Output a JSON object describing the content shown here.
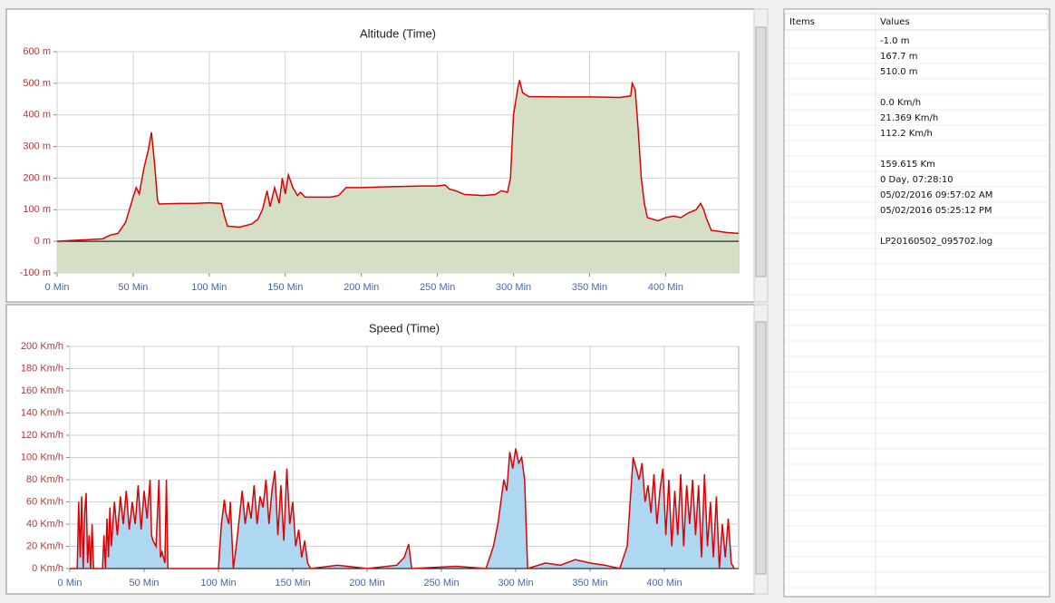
{
  "chart_data": [
    {
      "type": "area",
      "title": "Altitude (Time)",
      "x": [
        0,
        10,
        20,
        30,
        35,
        40,
        45,
        50,
        52,
        54,
        57,
        60,
        62,
        64,
        66,
        67,
        80,
        90,
        100,
        108,
        110,
        112,
        120,
        128,
        132,
        135,
        138,
        140,
        143,
        146,
        148,
        150,
        152,
        155,
        158,
        160,
        163,
        170,
        180,
        185,
        190,
        200,
        220,
        240,
        250,
        255,
        258,
        262,
        268,
        280,
        288,
        292,
        296,
        298,
        300,
        303,
        304,
        306,
        310,
        330,
        350,
        370,
        377,
        378,
        380,
        382,
        384,
        386,
        388,
        395,
        400,
        405,
        410,
        415,
        420,
        423,
        425,
        427,
        430,
        440,
        448
      ],
      "series": [
        {
          "color": "#e00000",
          "fill": "#d4dfc6",
          "values": [
            0,
            3,
            5,
            8,
            20,
            25,
            60,
            140,
            170,
            150,
            230,
            290,
            345,
            250,
            130,
            118,
            120,
            120,
            122,
            120,
            80,
            48,
            45,
            55,
            70,
            100,
            160,
            110,
            170,
            120,
            200,
            150,
            210,
            170,
            145,
            155,
            140,
            140,
            140,
            145,
            170,
            170,
            173,
            175,
            175,
            178,
            165,
            160,
            148,
            145,
            148,
            160,
            155,
            200,
            400,
            490,
            510,
            470,
            458,
            457,
            457,
            455,
            460,
            500,
            480,
            350,
            200,
            120,
            75,
            65,
            75,
            80,
            75,
            90,
            100,
            120,
            100,
            70,
            35,
            28,
            25
          ]
        }
      ],
      "xlim": [
        0,
        448
      ],
      "ylim": [
        -100,
        600
      ],
      "xticks": [
        {
          "value": 0,
          "label": "0 Min"
        },
        {
          "value": 50,
          "label": "50 Min"
        },
        {
          "value": 100,
          "label": "100 Min"
        },
        {
          "value": 150,
          "label": "150 Min"
        },
        {
          "value": 200,
          "label": "200 Min"
        },
        {
          "value": 250,
          "label": "250 Min"
        },
        {
          "value": 300,
          "label": "300 Min"
        },
        {
          "value": 350,
          "label": "350 Min"
        },
        {
          "value": 400,
          "label": "400 Min"
        }
      ],
      "yticks": [
        {
          "value": -100,
          "label": "-100 m"
        },
        {
          "value": 0,
          "label": "0 m"
        },
        {
          "value": 100,
          "label": "100 m"
        },
        {
          "value": 200,
          "label": "200 m"
        },
        {
          "value": 300,
          "label": "300 m"
        },
        {
          "value": 400,
          "label": "400 m"
        },
        {
          "value": 500,
          "label": "500 m"
        },
        {
          "value": 600,
          "label": "600 m"
        }
      ],
      "grid": true
    },
    {
      "type": "area",
      "title": "Speed (Time)",
      "x": [
        0,
        5,
        6,
        7,
        8,
        9,
        10,
        11,
        12,
        13,
        14,
        15,
        16,
        20,
        22,
        23,
        24,
        25,
        26,
        27,
        28,
        30,
        32,
        34,
        36,
        38,
        40,
        42,
        44,
        46,
        48,
        50,
        52,
        54,
        55,
        56,
        58,
        60,
        61,
        62,
        64,
        65,
        66,
        100,
        102,
        104,
        105,
        107,
        108,
        110,
        112,
        114,
        116,
        118,
        120,
        122,
        124,
        126,
        128,
        130,
        132,
        134,
        136,
        138,
        140,
        142,
        144,
        146,
        148,
        150,
        152,
        154,
        156,
        158,
        160,
        162,
        180,
        200,
        220,
        225,
        228,
        230,
        260,
        280,
        285,
        288,
        290,
        292,
        294,
        296,
        298,
        300,
        302,
        304,
        306,
        308,
        320,
        330,
        340,
        350,
        360,
        370,
        375,
        377,
        379,
        381,
        383,
        385,
        387,
        389,
        391,
        393,
        395,
        397,
        399,
        401,
        403,
        405,
        407,
        409,
        411,
        413,
        415,
        417,
        419,
        421,
        423,
        425,
        427,
        429,
        431,
        433,
        435,
        437,
        439,
        441,
        443,
        445,
        447
      ],
      "series": [
        {
          "color": "#e00000",
          "fill": "#aed8f2",
          "values": [
            0,
            0,
            60,
            10,
            65,
            0,
            50,
            68,
            5,
            30,
            0,
            40,
            0,
            0,
            0,
            30,
            0,
            45,
            10,
            55,
            20,
            60,
            30,
            65,
            40,
            70,
            35,
            60,
            40,
            75,
            35,
            70,
            45,
            80,
            30,
            25,
            20,
            80,
            10,
            15,
            5,
            80,
            0,
            0,
            40,
            62,
            50,
            40,
            60,
            0,
            20,
            45,
            70,
            40,
            60,
            45,
            75,
            40,
            65,
            55,
            80,
            40,
            70,
            88,
            30,
            75,
            25,
            90,
            40,
            60,
            20,
            35,
            10,
            25,
            5,
            0,
            3,
            0,
            3,
            10,
            22,
            0,
            2,
            0,
            20,
            40,
            60,
            80,
            70,
            105,
            90,
            108,
            95,
            100,
            80,
            0,
            5,
            3,
            8,
            5,
            3,
            0,
            20,
            60,
            100,
            90,
            80,
            95,
            60,
            75,
            50,
            85,
            40,
            70,
            90,
            30,
            80,
            20,
            70,
            30,
            85,
            20,
            75,
            40,
            80,
            30,
            75,
            10,
            85,
            20,
            60,
            10,
            65,
            0,
            40,
            10,
            45,
            5,
            0
          ]
        }
      ],
      "xlim": [
        0,
        450
      ],
      "ylim": [
        0,
        200
      ],
      "xticks": [
        {
          "value": 0,
          "label": "0 Min"
        },
        {
          "value": 50,
          "label": "50 Min"
        },
        {
          "value": 100,
          "label": "100 Min"
        },
        {
          "value": 150,
          "label": "150 Min"
        },
        {
          "value": 200,
          "label": "200 Min"
        },
        {
          "value": 250,
          "label": "250 Min"
        },
        {
          "value": 300,
          "label": "300 Min"
        },
        {
          "value": 350,
          "label": "350 Min"
        },
        {
          "value": 400,
          "label": "400 Min"
        }
      ],
      "yticks": [
        {
          "value": 0,
          "label": "0 Km/h"
        },
        {
          "value": 20,
          "label": "20 Km/h"
        },
        {
          "value": 40,
          "label": "40 Km/h"
        },
        {
          "value": 60,
          "label": "60 Km/h"
        },
        {
          "value": 80,
          "label": "80 Km/h"
        },
        {
          "value": 100,
          "label": "100 Km/h"
        },
        {
          "value": 120,
          "label": "120 Km/h"
        },
        {
          "value": 140,
          "label": "140 Km/h"
        },
        {
          "value": 160,
          "label": "160 Km/h"
        },
        {
          "value": 180,
          "label": "180 Km/h"
        },
        {
          "value": 200,
          "label": "200 Km/h"
        }
      ],
      "grid": true
    }
  ],
  "table": {
    "columns": [
      "Items",
      "Values"
    ],
    "rows": [
      "-1.0 m",
      "167.7 m",
      "510.0 m",
      null,
      "0.0 Km/h",
      "21.369 Km/h",
      "112.2 Km/h",
      null,
      "159.615 Km",
      "0 Day, 07:28:10",
      "05/02/2016 09:57:02 AM",
      "05/02/2016 05:25:12 PM",
      null,
      "LP20160502_095702.log"
    ]
  }
}
